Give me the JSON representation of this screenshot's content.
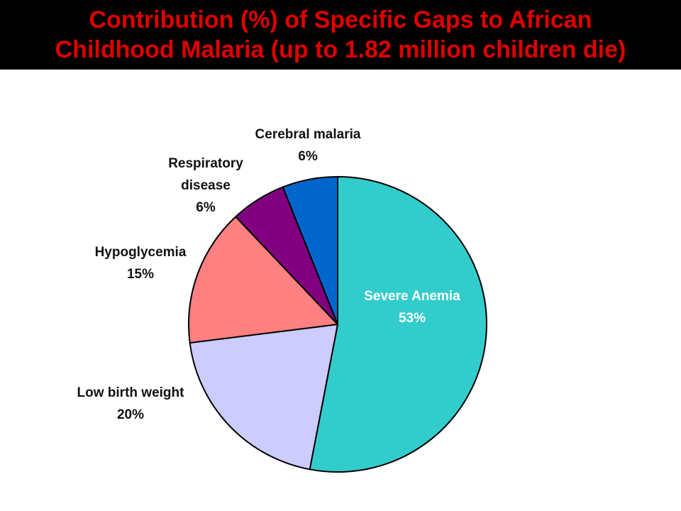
{
  "title": {
    "line1": "Contribution (%) of Specific Gaps to African",
    "line2": "Childhood Malaria (up to 1.82 million children die)"
  },
  "chart_data": {
    "type": "pie",
    "title": "Contribution (%) of Specific Gaps to African Childhood Malaria (up to 1.82 million children die)",
    "start_angle_deg": 0,
    "direction": "clockwise",
    "slices": [
      {
        "label": "Severe Anemia",
        "label_lines": [
          "Severe Anemia"
        ],
        "value": 53,
        "value_label": "53%",
        "color": "#33cccc",
        "label_color": "#ffffff"
      },
      {
        "label": "Low birth weight",
        "label_lines": [
          "Low birth weight"
        ],
        "value": 20,
        "value_label": "20%",
        "color": "#ccccff",
        "label_color": "#111111"
      },
      {
        "label": "Hypoglycemia",
        "label_lines": [
          "Hypoglycemia"
        ],
        "value": 15,
        "value_label": "15%",
        "color": "#ff8080",
        "label_color": "#111111"
      },
      {
        "label": "Respiratory disease",
        "label_lines": [
          "Respiratory",
          "disease"
        ],
        "value": 6,
        "value_label": "6%",
        "color": "#800080",
        "label_color": "#111111"
      },
      {
        "label": "Cerebral malaria",
        "label_lines": [
          "Cerebral malaria"
        ],
        "value": 6,
        "value_label": "6%",
        "color": "#0066cc",
        "label_color": "#111111"
      }
    ]
  }
}
